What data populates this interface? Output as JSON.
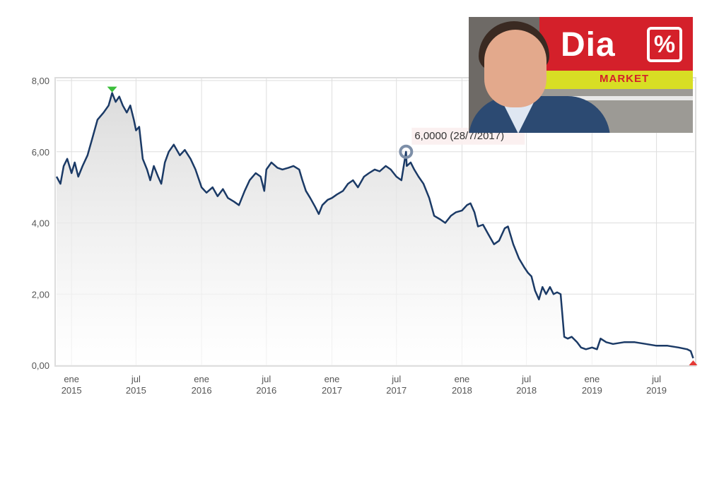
{
  "chart_data": {
    "type": "line",
    "title": "",
    "xlabel": "",
    "ylabel": "",
    "ylim": [
      0,
      8
    ],
    "y_ticks": [
      "0,00",
      "2,00",
      "4,00",
      "6,00",
      "8,00"
    ],
    "x_ticks": [
      {
        "month": "ene",
        "year": "2015",
        "date": "2015-01-01"
      },
      {
        "month": "jul",
        "year": "2015",
        "date": "2015-07-01"
      },
      {
        "month": "ene",
        "year": "2016",
        "date": "2016-01-01"
      },
      {
        "month": "jul",
        "year": "2016",
        "date": "2016-07-01"
      },
      {
        "month": "ene",
        "year": "2017",
        "date": "2017-01-01"
      },
      {
        "month": "jul",
        "year": "2017",
        "date": "2017-07-01"
      },
      {
        "month": "ene",
        "year": "2018",
        "date": "2018-01-01"
      },
      {
        "month": "jul",
        "year": "2018",
        "date": "2018-07-01"
      },
      {
        "month": "ene",
        "year": "2019",
        "date": "2019-01-01"
      },
      {
        "month": "jul",
        "year": "2019",
        "date": "2019-07-01"
      }
    ],
    "xlim": [
      "2014-11-20",
      "2019-10-15"
    ],
    "grid": true,
    "line_color": "#1b3a66",
    "series": [
      {
        "name": "",
        "points": [
          [
            "2014-11-20",
            5.3
          ],
          [
            "2014-12-01",
            5.1
          ],
          [
            "2014-12-10",
            5.6
          ],
          [
            "2014-12-20",
            5.8
          ],
          [
            "2015-01-01",
            5.4
          ],
          [
            "2015-01-10",
            5.7
          ],
          [
            "2015-01-20",
            5.3
          ],
          [
            "2015-02-01",
            5.6
          ],
          [
            "2015-02-15",
            5.9
          ],
          [
            "2015-03-01",
            6.4
          ],
          [
            "2015-03-15",
            6.9
          ],
          [
            "2015-04-01",
            7.1
          ],
          [
            "2015-04-15",
            7.3
          ],
          [
            "2015-04-25",
            7.65
          ],
          [
            "2015-05-05",
            7.4
          ],
          [
            "2015-05-15",
            7.55
          ],
          [
            "2015-05-25",
            7.3
          ],
          [
            "2015-06-05",
            7.1
          ],
          [
            "2015-06-15",
            7.3
          ],
          [
            "2015-06-25",
            6.9
          ],
          [
            "2015-07-01",
            6.6
          ],
          [
            "2015-07-10",
            6.7
          ],
          [
            "2015-07-20",
            5.8
          ],
          [
            "2015-08-01",
            5.5
          ],
          [
            "2015-08-10",
            5.2
          ],
          [
            "2015-08-20",
            5.6
          ],
          [
            "2015-09-01",
            5.3
          ],
          [
            "2015-09-10",
            5.1
          ],
          [
            "2015-09-20",
            5.7
          ],
          [
            "2015-10-01",
            6.0
          ],
          [
            "2015-10-15",
            6.2
          ],
          [
            "2015-11-01",
            5.9
          ],
          [
            "2015-11-15",
            6.05
          ],
          [
            "2015-12-01",
            5.8
          ],
          [
            "2015-12-15",
            5.5
          ],
          [
            "2016-01-01",
            5.0
          ],
          [
            "2016-01-15",
            4.85
          ],
          [
            "2016-02-01",
            5.0
          ],
          [
            "2016-02-15",
            4.75
          ],
          [
            "2016-03-01",
            4.95
          ],
          [
            "2016-03-15",
            4.7
          ],
          [
            "2016-04-01",
            4.6
          ],
          [
            "2016-04-15",
            4.5
          ],
          [
            "2016-05-01",
            4.9
          ],
          [
            "2016-05-15",
            5.2
          ],
          [
            "2016-06-01",
            5.4
          ],
          [
            "2016-06-15",
            5.3
          ],
          [
            "2016-06-25",
            4.9
          ],
          [
            "2016-07-01",
            5.5
          ],
          [
            "2016-07-15",
            5.7
          ],
          [
            "2016-08-01",
            5.55
          ],
          [
            "2016-08-15",
            5.5
          ],
          [
            "2016-09-01",
            5.55
          ],
          [
            "2016-09-15",
            5.6
          ],
          [
            "2016-10-01",
            5.5
          ],
          [
            "2016-10-10",
            5.2
          ],
          [
            "2016-10-20",
            4.9
          ],
          [
            "2016-11-01",
            4.7
          ],
          [
            "2016-11-15",
            4.45
          ],
          [
            "2016-11-25",
            4.25
          ],
          [
            "2016-12-05",
            4.5
          ],
          [
            "2016-12-20",
            4.65
          ],
          [
            "2017-01-01",
            4.7
          ],
          [
            "2017-01-15",
            4.8
          ],
          [
            "2017-02-01",
            4.9
          ],
          [
            "2017-02-15",
            5.1
          ],
          [
            "2017-03-01",
            5.2
          ],
          [
            "2017-03-15",
            5.0
          ],
          [
            "2017-04-01",
            5.3
          ],
          [
            "2017-04-15",
            5.4
          ],
          [
            "2017-05-01",
            5.5
          ],
          [
            "2017-05-15",
            5.45
          ],
          [
            "2017-06-01",
            5.6
          ],
          [
            "2017-06-15",
            5.5
          ],
          [
            "2017-07-01",
            5.3
          ],
          [
            "2017-07-15",
            5.2
          ],
          [
            "2017-07-28",
            6.0
          ],
          [
            "2017-07-30",
            5.6
          ],
          [
            "2017-08-10",
            5.7
          ],
          [
            "2017-08-20",
            5.5
          ],
          [
            "2017-09-01",
            5.3
          ],
          [
            "2017-09-15",
            5.1
          ],
          [
            "2017-10-01",
            4.7
          ],
          [
            "2017-10-15",
            4.2
          ],
          [
            "2017-11-01",
            4.1
          ],
          [
            "2017-11-15",
            4.0
          ],
          [
            "2017-12-01",
            4.2
          ],
          [
            "2017-12-15",
            4.3
          ],
          [
            "2018-01-01",
            4.35
          ],
          [
            "2018-01-15",
            4.5
          ],
          [
            "2018-01-25",
            4.55
          ],
          [
            "2018-02-05",
            4.3
          ],
          [
            "2018-02-15",
            3.9
          ],
          [
            "2018-03-01",
            3.95
          ],
          [
            "2018-03-15",
            3.7
          ],
          [
            "2018-04-01",
            3.4
          ],
          [
            "2018-04-15",
            3.5
          ],
          [
            "2018-05-01",
            3.85
          ],
          [
            "2018-05-10",
            3.9
          ],
          [
            "2018-05-25",
            3.4
          ],
          [
            "2018-06-10",
            3.0
          ],
          [
            "2018-06-25",
            2.75
          ],
          [
            "2018-07-05",
            2.6
          ],
          [
            "2018-07-15",
            2.5
          ],
          [
            "2018-07-25",
            2.1
          ],
          [
            "2018-08-05",
            1.85
          ],
          [
            "2018-08-15",
            2.2
          ],
          [
            "2018-08-25",
            2.0
          ],
          [
            "2018-09-05",
            2.2
          ],
          [
            "2018-09-15",
            2.0
          ],
          [
            "2018-09-25",
            2.05
          ],
          [
            "2018-10-05",
            2.0
          ],
          [
            "2018-10-15",
            0.8
          ],
          [
            "2018-10-25",
            0.75
          ],
          [
            "2018-11-05",
            0.8
          ],
          [
            "2018-11-20",
            0.65
          ],
          [
            "2018-12-01",
            0.5
          ],
          [
            "2018-12-15",
            0.45
          ],
          [
            "2019-01-01",
            0.5
          ],
          [
            "2019-01-15",
            0.45
          ],
          [
            "2019-01-25",
            0.75
          ],
          [
            "2019-02-10",
            0.65
          ],
          [
            "2019-03-01",
            0.6
          ],
          [
            "2019-04-01",
            0.65
          ],
          [
            "2019-05-01",
            0.65
          ],
          [
            "2019-06-01",
            0.6
          ],
          [
            "2019-07-01",
            0.55
          ],
          [
            "2019-08-01",
            0.55
          ],
          [
            "2019-09-01",
            0.5
          ],
          [
            "2019-09-25",
            0.45
          ],
          [
            "2019-10-05",
            0.4
          ],
          [
            "2019-10-12",
            0.2
          ]
        ]
      }
    ],
    "max_marker": {
      "date": "2015-04-25",
      "value": 7.65,
      "color": "#3cbf3c"
    },
    "min_marker": {
      "date": "2019-10-12",
      "value": 0.2,
      "color": "#e53935"
    },
    "highlight": {
      "date": "2017-07-28",
      "value": 6.0,
      "label": "6,0000 (28/7/2017)"
    }
  },
  "photo": {
    "store_logo": "Dia",
    "store_logo_pct": "%",
    "store_sign": "MARKET"
  }
}
